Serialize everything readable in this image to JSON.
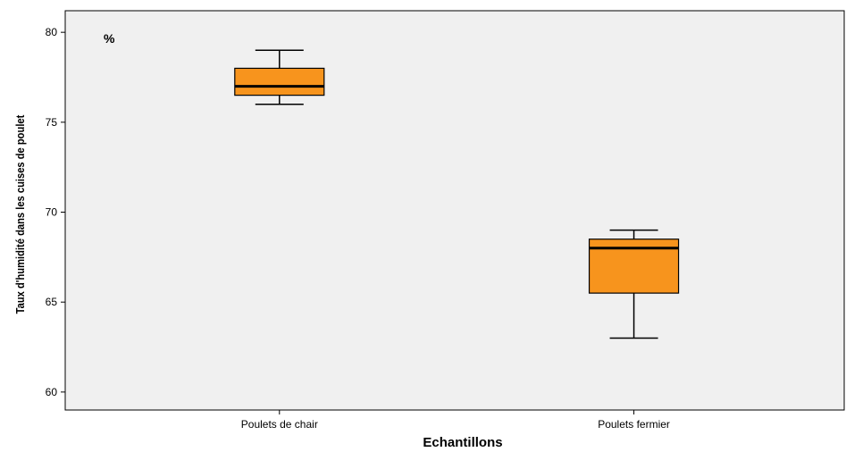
{
  "chart_data": {
    "type": "box",
    "title": "",
    "xlabel": "Echantillons",
    "ylabel": "Taux d'humidité dans les cuises de  poulet",
    "unit_annotation": "%",
    "ylim": [
      59,
      81.2
    ],
    "yticks": [
      60,
      65,
      70,
      75,
      80
    ],
    "categories": [
      "Poulets de chair",
      "Poulets fermier"
    ],
    "boxes": [
      {
        "category": "Poulets de chair",
        "min": 76,
        "q1": 76.5,
        "median": 77,
        "q3": 78,
        "max": 79
      },
      {
        "category": "Poulets fermier",
        "min": 63,
        "q1": 65.5,
        "median": 68,
        "q3": 68.5,
        "max": 69
      }
    ],
    "grid": false,
    "legend": "none",
    "colors": {
      "box_fill": "#F7941D",
      "plot_background": "#F0F0F0",
      "line": "#000000"
    }
  }
}
